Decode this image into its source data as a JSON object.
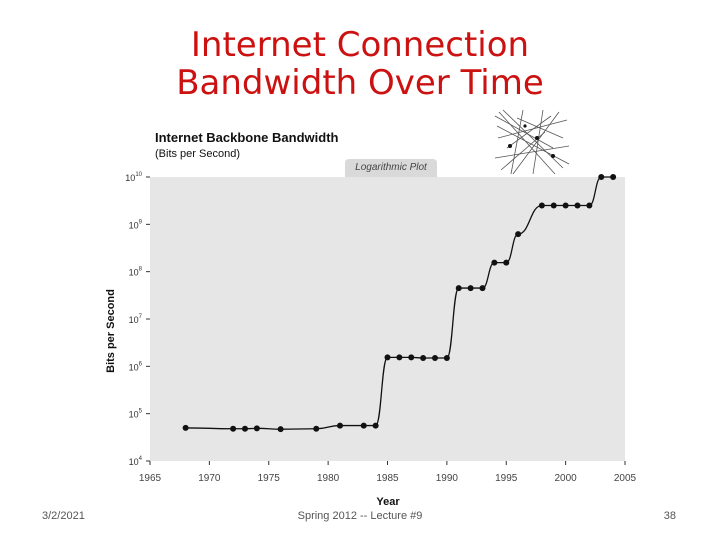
{
  "slide": {
    "title_line1": "Internet Connection",
    "title_line2": "Bandwidth Over Time",
    "footer_date": "3/2/2021",
    "footer_course": "Spring 2012 -- Lecture #9",
    "footer_page": "38"
  },
  "chart_data": {
    "type": "line",
    "title": "Internet Backbone Bandwidth",
    "title_unit": "(Bits per Second)",
    "scale_note": "Logarithmic Plot",
    "xlabel": "Year",
    "ylabel": "Bits per Second",
    "xlim": [
      1965,
      2005
    ],
    "ylim": [
      10000,
      10000000000
    ],
    "yscale": "log",
    "x_ticks": [
      1965,
      1970,
      1975,
      1980,
      1985,
      1990,
      1995,
      2000,
      2005
    ],
    "y_ticks": [
      {
        "base": "10",
        "exp": "4"
      },
      {
        "base": "10",
        "exp": "5"
      },
      {
        "base": "10",
        "exp": "6"
      },
      {
        "base": "10",
        "exp": "7"
      },
      {
        "base": "10",
        "exp": "8"
      },
      {
        "base": "10",
        "exp": "9"
      },
      {
        "base": "10",
        "exp": "10"
      }
    ],
    "grid": false,
    "background": "#e6e6e6",
    "line_color": "#111111",
    "x": [
      1968,
      1972,
      1973,
      1974,
      1976,
      1979,
      1981,
      1983,
      1984,
      1985,
      1986,
      1987,
      1988,
      1989,
      1990,
      1991,
      1992,
      1993,
      1994,
      1995,
      1996,
      1998,
      1999,
      2000,
      2001,
      2002,
      2003,
      2004
    ],
    "y": [
      50000,
      48000,
      48000,
      49000,
      47000,
      48000,
      56000,
      56000,
      56000,
      1544000,
      1544000,
      1544000,
      1500000,
      1500000,
      1500000,
      45000000,
      45000000,
      45000000,
      155000000,
      155000000,
      622000000,
      2500000000,
      2500000000,
      2500000000,
      2500000000,
      2500000000,
      10000000000,
      10000000000
    ]
  }
}
